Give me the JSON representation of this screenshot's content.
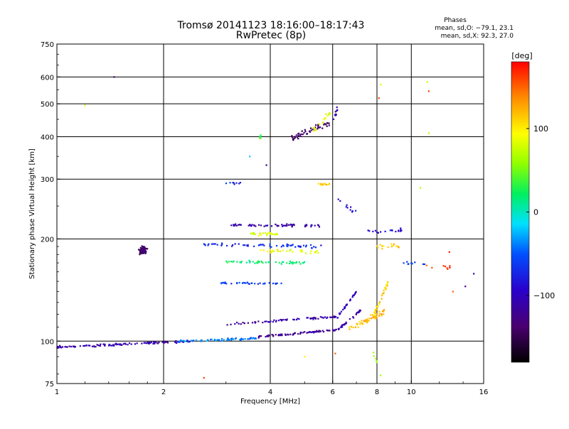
{
  "title": {
    "line1": "Tromsø 20141123 18:16:00–18:17:43",
    "line2": "RwPretec (8p)"
  },
  "stats": {
    "heading": "Phases",
    "line_o": "mean, sd,O: −79.1, 23.1",
    "line_x": "mean, sd,X:  92.3, 27.0"
  },
  "colorbar": {
    "label": "[deg]",
    "range": [
      -180,
      180
    ],
    "ticks": [
      {
        "value": 100,
        "label": "100"
      },
      {
        "value": 0,
        "label": "0"
      },
      {
        "value": -100,
        "label": "−100"
      }
    ]
  },
  "chart_data": {
    "type": "scatter",
    "title": "Tromsø 20141123 18:16:00–18:17:43 RwPretec (8p)",
    "xlabel": "Frequency [MHz]",
    "ylabel": "Stationary phase Virtual Height [km]",
    "xscale": "log",
    "yscale": "log",
    "xlim": [
      1,
      16
    ],
    "ylim": [
      75,
      750
    ],
    "grid": true,
    "xticks": [
      {
        "value": 1,
        "label": "1"
      },
      {
        "value": 2,
        "label": "2"
      },
      {
        "value": 4,
        "label": "4"
      },
      {
        "value": 6,
        "label": "6"
      },
      {
        "value": 8,
        "label": "8"
      },
      {
        "value": 10,
        "label": "10"
      },
      {
        "value": 16,
        "label": "16"
      }
    ],
    "yticks": [
      {
        "value": 75,
        "label": "75"
      },
      {
        "value": 100,
        "label": "100"
      },
      {
        "value": 200,
        "label": "200"
      },
      {
        "value": 300,
        "label": "300"
      },
      {
        "value": 400,
        "label": "400"
      },
      {
        "value": 500,
        "label": "500"
      },
      {
        "value": 600,
        "label": "600"
      },
      {
        "value": 750,
        "label": "750"
      }
    ],
    "color_by": "phase [deg]",
    "traces": [
      {
        "f0": 1.0,
        "f1": 2.4,
        "h0": 96,
        "h1": 100,
        "phase": -110,
        "n": 110,
        "scatter": 0.012
      },
      {
        "f0": 2.2,
        "f1": 3.7,
        "h0": 100,
        "h1": 102,
        "phase": -40,
        "n": 70,
        "scatter": 0.01
      },
      {
        "f0": 3.7,
        "f1": 6.2,
        "h0": 103,
        "h1": 108,
        "phase": -120,
        "n": 80,
        "scatter": 0.01
      },
      {
        "f0": 6.2,
        "f1": 7.3,
        "h0": 108,
        "h1": 125,
        "phase": -110,
        "n": 30,
        "scatter": 0.012
      },
      {
        "f0": 3.0,
        "f1": 6.2,
        "h0": 112,
        "h1": 118,
        "phase": -110,
        "n": 70,
        "scatter": 0.012
      },
      {
        "f0": 6.2,
        "f1": 7.0,
        "h0": 118,
        "h1": 140,
        "phase": -100,
        "n": 25,
        "scatter": 0.012
      },
      {
        "f0": 6.6,
        "f1": 8.4,
        "h0": 108,
        "h1": 122,
        "phase": 120,
        "n": 50,
        "scatter": 0.03
      },
      {
        "f0": 7.8,
        "f1": 8.6,
        "h0": 118,
        "h1": 150,
        "phase": 110,
        "n": 35,
        "scatter": 0.03
      },
      {
        "f0": 2.5,
        "f1": 5.6,
        "h0": 193,
        "h1": 190,
        "phase": -70,
        "n": 60,
        "scatter": 0.015
      },
      {
        "f0": 3.1,
        "f1": 5.5,
        "h0": 220,
        "h1": 219,
        "phase": -110,
        "n": 60,
        "scatter": 0.012
      },
      {
        "f0": 3.0,
        "f1": 5.0,
        "h0": 172,
        "h1": 170,
        "phase": 20,
        "n": 50,
        "scatter": 0.015
      },
      {
        "f0": 2.9,
        "f1": 4.3,
        "h0": 148,
        "h1": 148,
        "phase": -60,
        "n": 35,
        "scatter": 0.01
      },
      {
        "f0": 3.5,
        "f1": 4.2,
        "h0": 207,
        "h1": 207,
        "phase": 80,
        "n": 25,
        "scatter": 0.02
      },
      {
        "f0": 3.7,
        "f1": 5.5,
        "h0": 185,
        "h1": 183,
        "phase": 90,
        "n": 30,
        "scatter": 0.02
      },
      {
        "f0": 4.6,
        "f1": 5.9,
        "h0": 395,
        "h1": 440,
        "phase": -140,
        "n": 50,
        "scatter": 0.03
      },
      {
        "f0": 5.3,
        "f1": 5.9,
        "h0": 420,
        "h1": 470,
        "phase": 90,
        "n": 20,
        "scatter": 0.03
      },
      {
        "f0": 6.0,
        "f1": 6.2,
        "h0": 440,
        "h1": 490,
        "phase": -110,
        "n": 10,
        "scatter": 0.03
      },
      {
        "f0": 5.4,
        "f1": 5.9,
        "h0": 290,
        "h1": 290,
        "phase": 110,
        "n": 12,
        "scatter": 0.01
      },
      {
        "f0": 3.0,
        "f1": 3.3,
        "h0": 292,
        "h1": 292,
        "phase": -70,
        "n": 8,
        "scatter": 0.01
      },
      {
        "f0": 7.5,
        "f1": 9.5,
        "h0": 210,
        "h1": 212,
        "phase": -90,
        "n": 18,
        "scatter": 0.02
      },
      {
        "f0": 8.0,
        "f1": 9.3,
        "h0": 190,
        "h1": 190,
        "phase": 120,
        "n": 15,
        "scatter": 0.02
      },
      {
        "f0": 9.5,
        "f1": 11.0,
        "h0": 170,
        "h1": 170,
        "phase": -60,
        "n": 10,
        "scatter": 0.02
      },
      {
        "f0": 10.8,
        "f1": 13.0,
        "h0": 165,
        "h1": 165,
        "phase": 160,
        "n": 8,
        "scatter": 0.02
      },
      {
        "f0": 6.2,
        "f1": 7.0,
        "h0": 260,
        "h1": 240,
        "phase": -90,
        "n": 10,
        "scatter": 0.03
      },
      {
        "f0": 7.8,
        "f1": 8.2,
        "h0": 93,
        "h1": 80,
        "phase": 60,
        "n": 6,
        "scatter": 0.03
      }
    ],
    "clusters": [
      {
        "f": 1.75,
        "h": 185,
        "phase": -140,
        "n": 90,
        "sf": 0.035,
        "sh": 0.035
      },
      {
        "f": 3.75,
        "h": 400,
        "phase": 40,
        "n": 6,
        "sf": 0.01,
        "sh": 0.02
      }
    ],
    "points": [
      {
        "x": 1.45,
        "y": 600,
        "phase": -140
      },
      {
        "x": 1.2,
        "y": 495,
        "phase": 80
      },
      {
        "x": 2.6,
        "y": 78,
        "phase": 160
      },
      {
        "x": 8.2,
        "y": 570,
        "phase": 80
      },
      {
        "x": 8.1,
        "y": 520,
        "phase": 160
      },
      {
        "x": 11.1,
        "y": 580,
        "phase": 70
      },
      {
        "x": 11.2,
        "y": 545,
        "phase": 160
      },
      {
        "x": 11.2,
        "y": 410,
        "phase": 70
      },
      {
        "x": 3.9,
        "y": 330,
        "phase": -120
      },
      {
        "x": 3.5,
        "y": 350,
        "phase": -20
      },
      {
        "x": 15.0,
        "y": 158,
        "phase": -110
      },
      {
        "x": 14.2,
        "y": 145,
        "phase": -120
      },
      {
        "x": 13.1,
        "y": 140,
        "phase": 150
      },
      {
        "x": 12.8,
        "y": 183,
        "phase": 170
      },
      {
        "x": 10.6,
        "y": 283,
        "phase": 70
      },
      {
        "x": 6.1,
        "y": 92,
        "phase": 150
      },
      {
        "x": 5.0,
        "y": 90,
        "phase": 100
      }
    ]
  }
}
